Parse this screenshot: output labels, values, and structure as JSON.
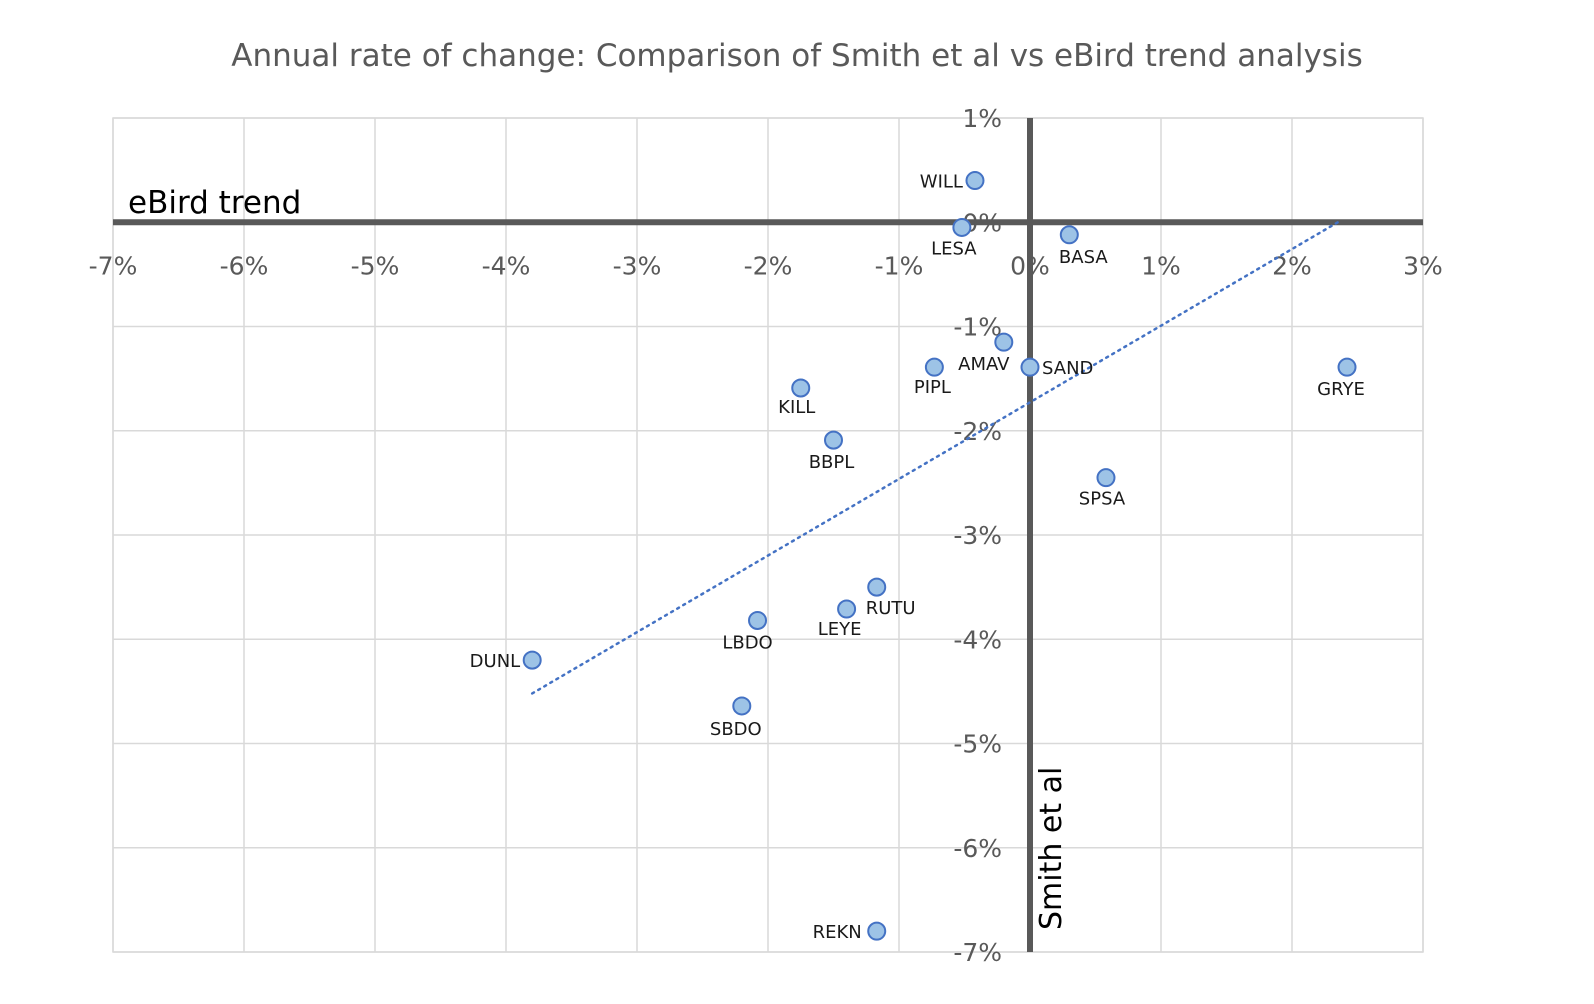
{
  "chart_data": {
    "type": "scatter",
    "title": "Annual rate of change: Comparison of Smith et al vs eBird trend analysis",
    "xlabel": "Smith et al",
    "ylabel": "eBird trend",
    "xlim": [
      -7,
      3
    ],
    "ylim": [
      -7,
      1
    ],
    "x_ticks": [
      "-7%",
      "-6%",
      "-5%",
      "-4%",
      "-3%",
      "-2%",
      "-1%",
      "0%",
      "1%",
      "2%",
      "3%"
    ],
    "y_ticks": [
      "1%",
      "0%",
      "-1%",
      "-2%",
      "-3%",
      "-4%",
      "-5%",
      "-6%",
      "-7%"
    ],
    "grid": true,
    "points": [
      {
        "label": "WILL",
        "x": -0.42,
        "y": 0.4
      },
      {
        "label": "LESA",
        "x": -0.52,
        "y": -0.05
      },
      {
        "label": "BASA",
        "x": 0.3,
        "y": -0.12
      },
      {
        "label": "AMAV",
        "x": -0.2,
        "y": -1.15
      },
      {
        "label": "PIPL",
        "x": -0.73,
        "y": -1.39
      },
      {
        "label": "SAND",
        "x": 0.0,
        "y": -1.39
      },
      {
        "label": "GRYE",
        "x": 2.42,
        "y": -1.39
      },
      {
        "label": "KILL",
        "x": -1.75,
        "y": -1.59
      },
      {
        "label": "BBPL",
        "x": -1.5,
        "y": -2.09
      },
      {
        "label": "SPSA",
        "x": 0.58,
        "y": -2.45
      },
      {
        "label": "RUTU",
        "x": -1.17,
        "y": -3.5
      },
      {
        "label": "LEYE",
        "x": -1.4,
        "y": -3.71
      },
      {
        "label": "LBDO",
        "x": -2.08,
        "y": -3.82
      },
      {
        "label": "DUNL",
        "x": -3.8,
        "y": -4.2
      },
      {
        "label": "SBDO",
        "x": -2.2,
        "y": -4.64
      },
      {
        "label": "REKN",
        "x": -1.17,
        "y": -6.8
      }
    ],
    "trendline": {
      "style": "dotted",
      "x": [
        -3.8,
        2.35
      ],
      "y": [
        -4.52,
        0.0
      ]
    },
    "colors": {
      "marker_fill": "#9dc3e6",
      "marker_stroke": "#4472c4",
      "trendline": "#4472c4",
      "axis": "#595959",
      "grid": "#d9d9d9"
    }
  }
}
